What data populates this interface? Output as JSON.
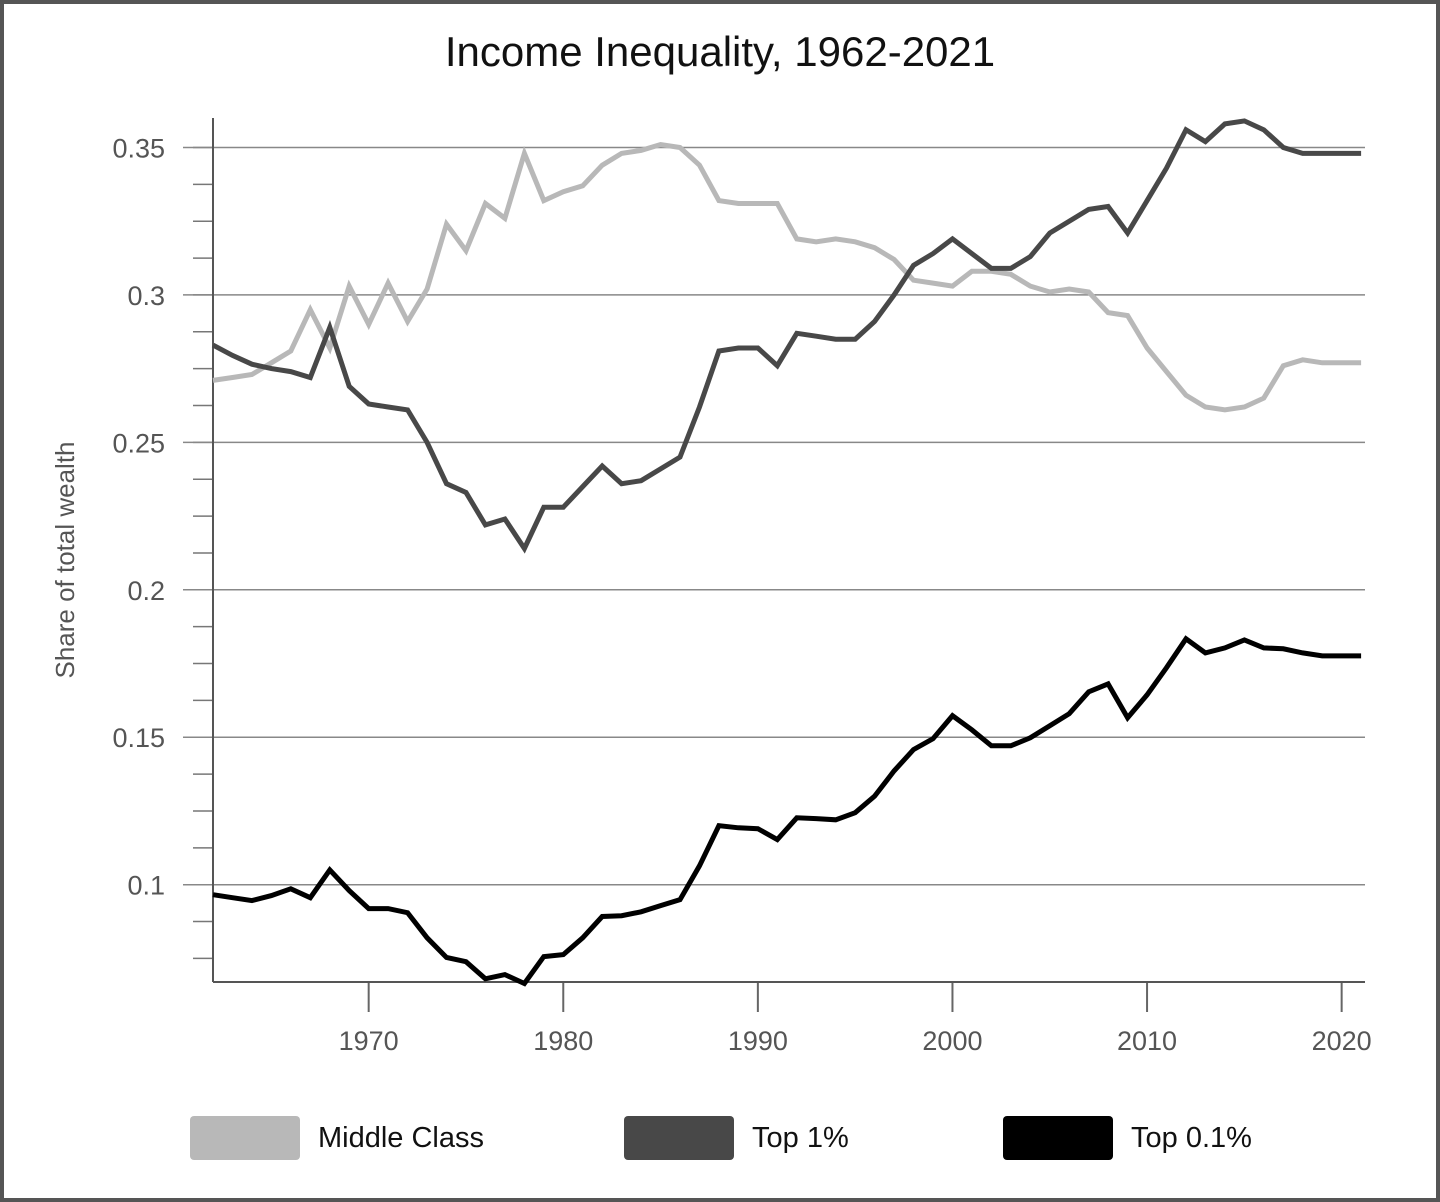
{
  "chart_data": {
    "type": "line",
    "title": "Income Inequality, 1962-2021",
    "xlabel": "",
    "ylabel": "Share of total wealth",
    "xlim": [
      1962,
      2021.2
    ],
    "ylim": [
      0.067,
      0.36
    ],
    "xticks": [
      1970,
      1980,
      1990,
      2000,
      2010,
      2020
    ],
    "yticks": [
      0.1,
      0.15,
      0.2,
      0.25,
      0.3,
      0.35
    ],
    "ytick_labels": [
      "0.1",
      "0.15",
      "0.2",
      "0.25",
      "0.3",
      "0.35"
    ],
    "grid": "horizontal",
    "legend_position": "bottom",
    "x": [
      1962,
      1963,
      1964,
      1965,
      1966,
      1967,
      1968,
      1969,
      1970,
      1971,
      1972,
      1973,
      1974,
      1975,
      1976,
      1977,
      1978,
      1979,
      1980,
      1981,
      1982,
      1983,
      1984,
      1985,
      1986,
      1987,
      1988,
      1989,
      1990,
      1991,
      1992,
      1993,
      1994,
      1995,
      1996,
      1997,
      1998,
      1999,
      2000,
      2001,
      2002,
      2003,
      2004,
      2005,
      2006,
      2007,
      2008,
      2009,
      2010,
      2011,
      2012,
      2013,
      2014,
      2015,
      2016,
      2017,
      2018,
      2019,
      2020,
      2021
    ],
    "series": [
      {
        "name": "Middle Class",
        "color": "#b8b8b8",
        "values": [
          0.271,
          0.272,
          0.273,
          0.277,
          0.281,
          0.295,
          0.282,
          0.303,
          0.29,
          0.304,
          0.291,
          0.302,
          0.324,
          0.315,
          0.331,
          0.326,
          0.348,
          0.332,
          0.335,
          0.337,
          0.344,
          0.348,
          0.349,
          0.351,
          0.35,
          0.344,
          0.332,
          0.331,
          0.331,
          0.331,
          0.319,
          0.318,
          0.319,
          0.318,
          0.316,
          0.312,
          0.305,
          0.304,
          0.303,
          0.308,
          0.308,
          0.307,
          0.303,
          0.301,
          0.302,
          0.301,
          0.294,
          0.293,
          0.282,
          0.274,
          0.266,
          0.262,
          0.261,
          0.262,
          0.265,
          0.276,
          0.278,
          0.277,
          0.277,
          0.277
        ]
      },
      {
        "name": "Top 1%",
        "color": "#484848",
        "values": [
          0.283,
          0.2795,
          0.2765,
          0.275,
          0.274,
          0.272,
          0.289,
          0.269,
          0.263,
          0.262,
          0.261,
          0.25,
          0.236,
          0.233,
          0.222,
          0.224,
          0.214,
          0.228,
          0.228,
          0.235,
          0.242,
          0.236,
          0.237,
          0.241,
          0.245,
          0.262,
          0.281,
          0.282,
          0.282,
          0.276,
          0.287,
          0.286,
          0.285,
          0.285,
          0.291,
          0.3,
          0.31,
          0.314,
          0.319,
          0.314,
          0.309,
          0.309,
          0.313,
          0.321,
          0.325,
          0.329,
          0.33,
          0.321,
          0.332,
          0.343,
          0.356,
          0.352,
          0.358,
          0.359,
          0.356,
          0.35,
          0.348,
          0.348,
          0.348,
          0.348
        ]
      },
      {
        "name": "Top 0.1%",
        "color": "#000000",
        "values": [
          0.0966,
          0.0956,
          0.0946,
          0.0963,
          0.0986,
          0.0956,
          0.105,
          0.098,
          0.0919,
          0.0919,
          0.0905,
          0.082,
          0.0753,
          0.0739,
          0.0681,
          0.0695,
          0.0665,
          0.0756,
          0.0763,
          0.082,
          0.0892,
          0.0895,
          0.0908,
          0.0929,
          0.0949,
          0.1064,
          0.12,
          0.1193,
          0.119,
          0.1153,
          0.1227,
          0.1224,
          0.122,
          0.1244,
          0.13,
          0.1386,
          0.1458,
          0.1495,
          0.1573,
          0.1525,
          0.1471,
          0.1471,
          0.1498,
          0.1539,
          0.158,
          0.1654,
          0.1681,
          0.1566,
          0.1644,
          0.1736,
          0.1834,
          0.1786,
          0.1803,
          0.183,
          0.1803,
          0.18,
          0.1786,
          0.1776,
          0.1776,
          0.1776
        ]
      }
    ]
  }
}
